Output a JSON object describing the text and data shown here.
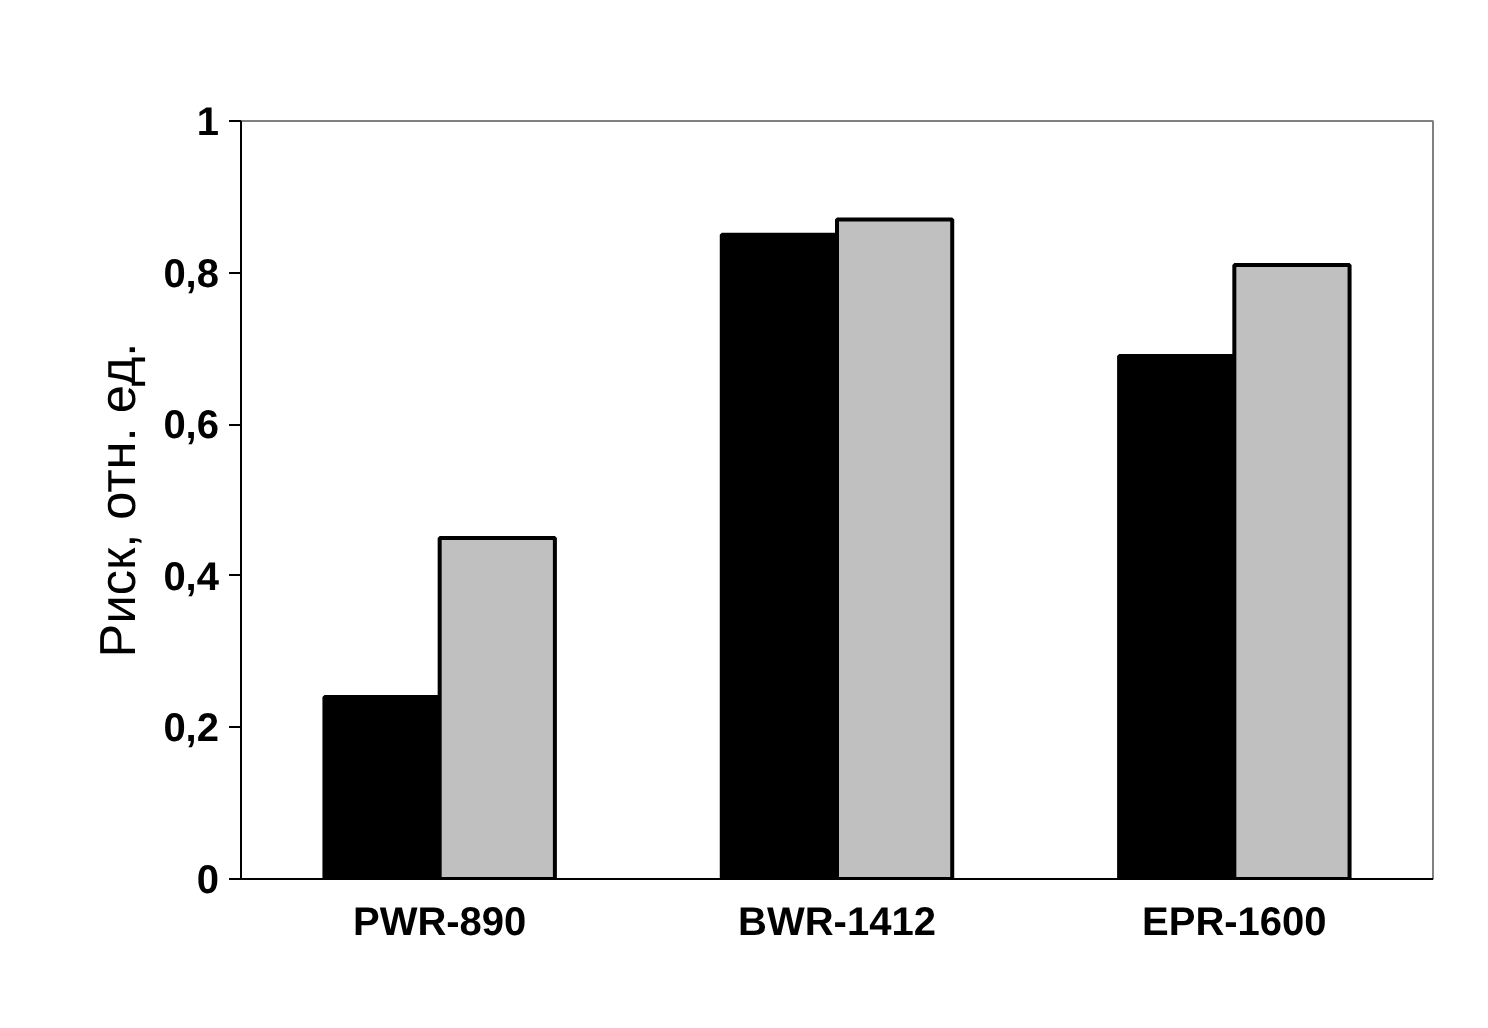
{
  "chart_data": {
    "type": "bar",
    "ylabel": "Риск, отн. ед.",
    "categories": [
      "PWR-890",
      "BWR-1412",
      "EPR-1600"
    ],
    "series": [
      {
        "color": "#000000",
        "values": [
          0.24,
          0.85,
          0.69
        ]
      },
      {
        "color": "#c0c0c0",
        "values": [
          0.45,
          0.87,
          0.81
        ]
      }
    ],
    "ylim": [
      0,
      1
    ],
    "yticks": [
      0,
      {
        "value": 0.2,
        "label": "0,2"
      },
      {
        "value": 0.4,
        "label": "0,4"
      },
      {
        "value": 0.6,
        "label": "0,6"
      },
      {
        "value": 0.8,
        "label": "0,8"
      },
      1
    ],
    "grid": false
  }
}
